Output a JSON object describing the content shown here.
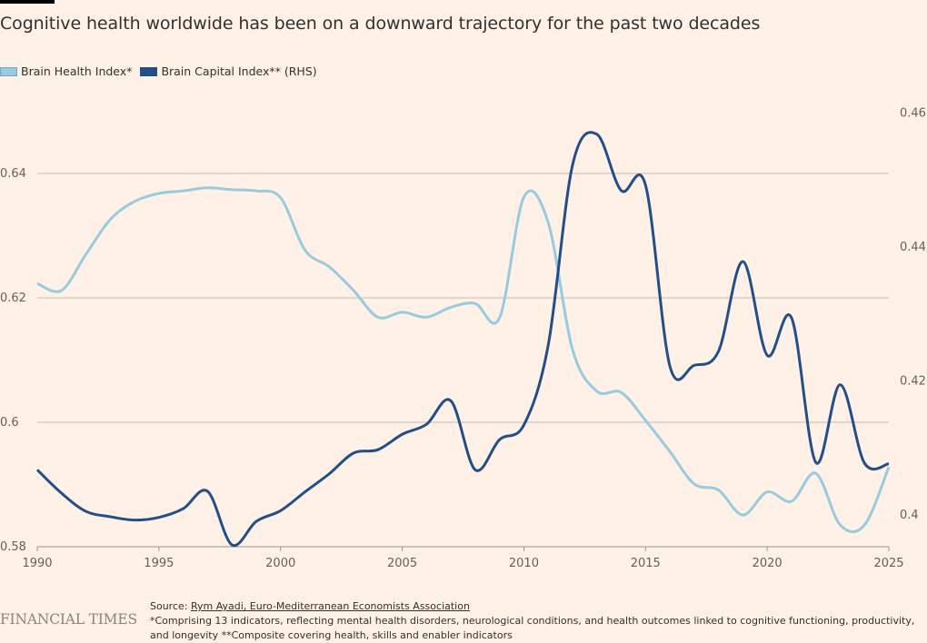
{
  "colors": {
    "background": "#FFF1E5",
    "brain_health": "#96CCE0",
    "brain_capital": "#1F508C",
    "grid": "#C8BBB0",
    "axis": "#9E948C"
  },
  "footer": {
    "logo": "FINANCIAL TIMES",
    "source_prefix": "Source: ",
    "source_link": "Rym Ayadi, Euro-Mediterranean Economists Association",
    "note": "*Comprising 13 indicators, reflecting mental health disorders, neurological conditions, and health outcomes linked to cognitive functioning, productivity, and longevity **Composite covering health, skills and enabler indicators"
  },
  "chart_data": {
    "type": "line",
    "title": "Cognitive health worldwide has been on a downward trajectory for the past two decades",
    "xlabel": "",
    "ylabel": "",
    "legend_position": "top-left",
    "grid": true,
    "x": [
      1990,
      1991,
      1992,
      1993,
      1994,
      1995,
      1996,
      1997,
      1998,
      1999,
      2000,
      2001,
      2002,
      2003,
      2004,
      2005,
      2006,
      2007,
      2008,
      2009,
      2010,
      2011,
      2012,
      2013,
      2014,
      2015,
      2016,
      2017,
      2018,
      2019,
      2020,
      2021,
      2022,
      2023,
      2024,
      2025
    ],
    "xlim": [
      1990,
      2025
    ],
    "x_ticks": [
      "1990",
      "1995",
      "2000",
      "2005",
      "2010",
      "2015",
      "2020",
      "2025"
    ],
    "y_left": {
      "ylim": [
        0.58,
        0.645
      ],
      "ticks": [
        "0.58",
        "0.6",
        "0.62",
        "0.64"
      ],
      "tick_values": [
        0.58,
        0.6,
        0.62,
        0.64
      ]
    },
    "y_right": {
      "ylim": [
        0.3955,
        0.465
      ],
      "ticks": [
        "0.4",
        "0.42",
        "0.44",
        "0.46"
      ],
      "tick_values": [
        0.4,
        0.42,
        0.44,
        0.46
      ]
    },
    "series": [
      {
        "name": "Brain Health Index*",
        "axis": "left",
        "values": [
          0.6223,
          0.6212,
          0.627,
          0.6326,
          0.6355,
          0.6368,
          0.6372,
          0.6377,
          0.6374,
          0.6372,
          0.6361,
          0.6277,
          0.625,
          0.6212,
          0.6169,
          0.6177,
          0.6169,
          0.6185,
          0.6191,
          0.6168,
          0.6362,
          0.6321,
          0.6117,
          0.605,
          0.6048,
          0.6003,
          0.5953,
          0.5901,
          0.5891,
          0.5851,
          0.5888,
          0.5873,
          0.5918,
          0.5835,
          0.5835,
          0.5928
        ]
      },
      {
        "name": "Brain Capital Index** (RHS)",
        "axis": "right",
        "values": [
          0.4066,
          0.4031,
          0.4004,
          0.3996,
          0.3991,
          0.3995,
          0.4008,
          0.4034,
          0.3954,
          0.3989,
          0.4005,
          0.4033,
          0.406,
          0.4091,
          0.4096,
          0.4119,
          0.4134,
          0.4169,
          0.4066,
          0.4111,
          0.4133,
          0.4252,
          0.4521,
          0.4567,
          0.4483,
          0.4491,
          0.4221,
          0.4222,
          0.4243,
          0.4377,
          0.4237,
          0.4293,
          0.4077,
          0.4193,
          0.4076,
          0.4075
        ]
      }
    ]
  }
}
